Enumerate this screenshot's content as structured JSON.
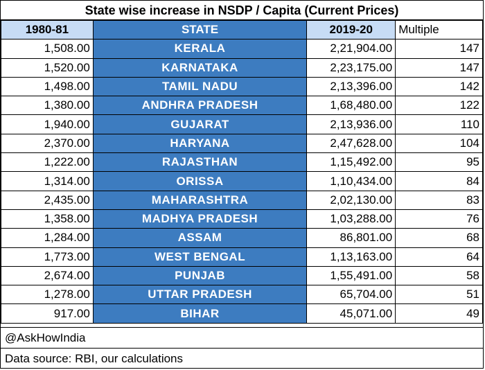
{
  "title": "State wise increase in NSDP / Capita (Current Prices)",
  "headers": {
    "col1": "1980-81",
    "col2": "STATE",
    "col3": "2019-20",
    "col4": "Multiple"
  },
  "rows": [
    {
      "y1980": "1,508.00",
      "state": "KERALA",
      "y2019": "2,21,904.00",
      "multiple": "147"
    },
    {
      "y1980": "1,520.00",
      "state": "KARNATAKA",
      "y2019": "2,23,175.00",
      "multiple": "147"
    },
    {
      "y1980": "1,498.00",
      "state": "TAMIL NADU",
      "y2019": "2,13,396.00",
      "multiple": "142"
    },
    {
      "y1980": "1,380.00",
      "state": "ANDHRA PRADESH",
      "y2019": "1,68,480.00",
      "multiple": "122"
    },
    {
      "y1980": "1,940.00",
      "state": "GUJARAT",
      "y2019": "2,13,936.00",
      "multiple": "110"
    },
    {
      "y1980": "2,370.00",
      "state": "HARYANA",
      "y2019": "2,47,628.00",
      "multiple": "104"
    },
    {
      "y1980": "1,222.00",
      "state": "RAJASTHAN",
      "y2019": "1,15,492.00",
      "multiple": "95"
    },
    {
      "y1980": "1,314.00",
      "state": "ORISSA",
      "y2019": "1,10,434.00",
      "multiple": "84"
    },
    {
      "y1980": "2,435.00",
      "state": "MAHARASHTRA",
      "y2019": "2,02,130.00",
      "multiple": "83"
    },
    {
      "y1980": "1,358.00",
      "state": "MADHYA PRADESH",
      "y2019": "1,03,288.00",
      "multiple": "76"
    },
    {
      "y1980": "1,284.00",
      "state": "ASSAM",
      "y2019": "86,801.00",
      "multiple": "68"
    },
    {
      "y1980": "1,773.00",
      "state": "WEST BENGAL",
      "y2019": "1,13,163.00",
      "multiple": "64"
    },
    {
      "y1980": "2,674.00",
      "state": "PUNJAB",
      "y2019": "1,55,491.00",
      "multiple": "58"
    },
    {
      "y1980": "1,278.00",
      "state": "UTTAR PRADESH",
      "y2019": "65,704.00",
      "multiple": "51"
    },
    {
      "y1980": "917.00",
      "state": "BIHAR",
      "y2019": "45,071.00",
      "multiple": "49"
    }
  ],
  "footer": {
    "handle": "@AskHowIndia",
    "source": "Data source: RBI, our calculations"
  },
  "colors": {
    "state_column_bg": "#3d7cc0",
    "year_header_bg": "#c7dcf5"
  }
}
